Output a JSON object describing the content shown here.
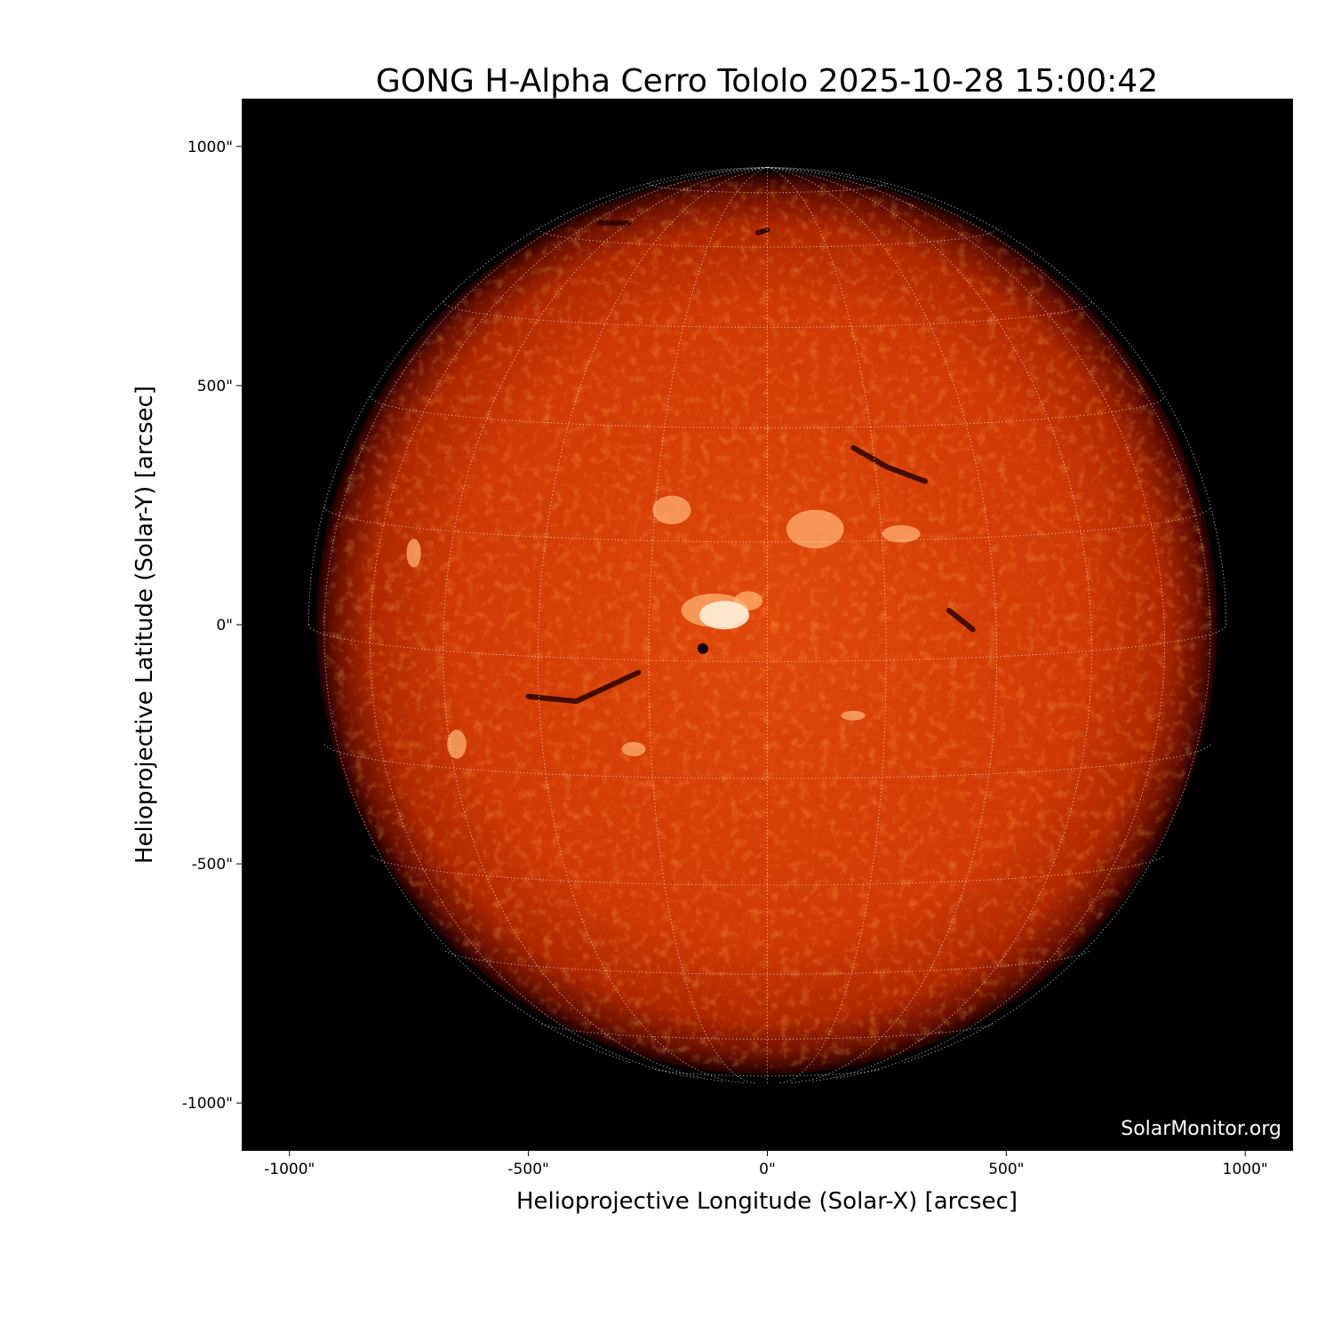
{
  "chart_data": {
    "type": "heatmap",
    "title": "GONG H-Alpha Cerro Tololo 2025-10-28 15:00:42",
    "xlabel": "Helioprojective Longitude (Solar-X) [arcsec]",
    "ylabel": "Helioprojective Latitude (Solar-Y) [arcsec]",
    "xlim": [
      -1100,
      1100
    ],
    "ylim": [
      -1100,
      1100
    ],
    "xticks": [
      -1000,
      -500,
      0,
      500,
      1000
    ],
    "yticks": [
      -1000,
      -500,
      0,
      500,
      1000
    ],
    "xtick_labels": [
      "-1000\"",
      "-500\"",
      "0\"",
      "500\"",
      "1000\""
    ],
    "ytick_labels": [
      "-1000\"",
      "-500\"",
      "0\"",
      "500\"",
      "1000\""
    ],
    "solar_radius_arcsec": 960,
    "grid": "heliographic lat/lon, 15° spacing, dotted white",
    "colormap": "black-red-orange-white (H-alpha)",
    "background_color": "#000000",
    "watermark": "SolarMonitor.org"
  }
}
